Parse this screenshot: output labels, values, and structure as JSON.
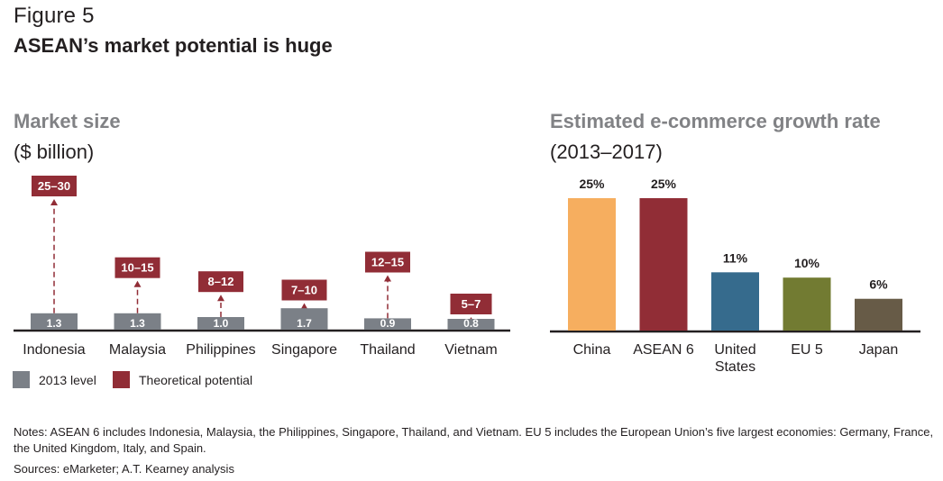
{
  "figure": {
    "label": "Figure 5",
    "title": "ASEAN’s market potential is huge"
  },
  "legend": {
    "items": [
      {
        "label": "2013 level",
        "color": "#7b8087"
      },
      {
        "label": "Theoretical potential",
        "color": "#912d36"
      }
    ]
  },
  "notes": "Notes: ASEAN 6 includes Indonesia, Malaysia, the Philippines, Singapore, Thailand, and Vietnam. EU 5 includes the European Union’s five largest economies: Germany, France, the United Kingdom, Italy, and Spain.",
  "sources": "Sources: eMarketer; A.T. Kearney analysis",
  "chart_data": [
    {
      "type": "bar",
      "title": "Market size",
      "subtitle": "($ billion)",
      "categories": [
        "Indonesia",
        "Malaysia",
        "Philippines",
        "Singapore",
        "Thailand",
        "Vietnam"
      ],
      "series": [
        {
          "name": "2013 level",
          "color": "#7b8087",
          "values": [
            1.3,
            1.3,
            1.0,
            1.7,
            0.9,
            0.8
          ],
          "labels": [
            "1.3",
            "1.3",
            "1.0",
            "1.7",
            "0.9",
            "0.8"
          ]
        },
        {
          "name": "Theoretical potential",
          "color": "#912d36",
          "ranges": [
            [
              25,
              30
            ],
            [
              10,
              15
            ],
            [
              8,
              12
            ],
            [
              7,
              10
            ],
            [
              12,
              15
            ],
            [
              5,
              7
            ]
          ],
          "labels": [
            "25–30",
            "10–15",
            "8–12",
            "7–10",
            "12–15",
            "5–7"
          ]
        }
      ],
      "xlabel": "",
      "ylabel": "",
      "grid": false,
      "legend": "bottom-left"
    },
    {
      "type": "bar",
      "title": "Estimated e-commerce growth rate",
      "subtitle": "(2013–2017)",
      "categories": [
        "China",
        "ASEAN 6",
        "United States",
        "EU 5",
        "Japan"
      ],
      "category_lines": [
        [
          "China"
        ],
        [
          "ASEAN 6"
        ],
        [
          "United",
          "States"
        ],
        [
          "EU 5"
        ],
        [
          "Japan"
        ]
      ],
      "values": [
        25,
        25,
        11,
        10,
        6
      ],
      "labels": [
        "25%",
        "25%",
        "11%",
        "10%",
        "6%"
      ],
      "colors": [
        "#f6ae5f",
        "#912d36",
        "#366b8d",
        "#727b32",
        "#675b47"
      ],
      "unit": "%",
      "xlabel": "",
      "ylabel": "",
      "grid": false
    }
  ]
}
